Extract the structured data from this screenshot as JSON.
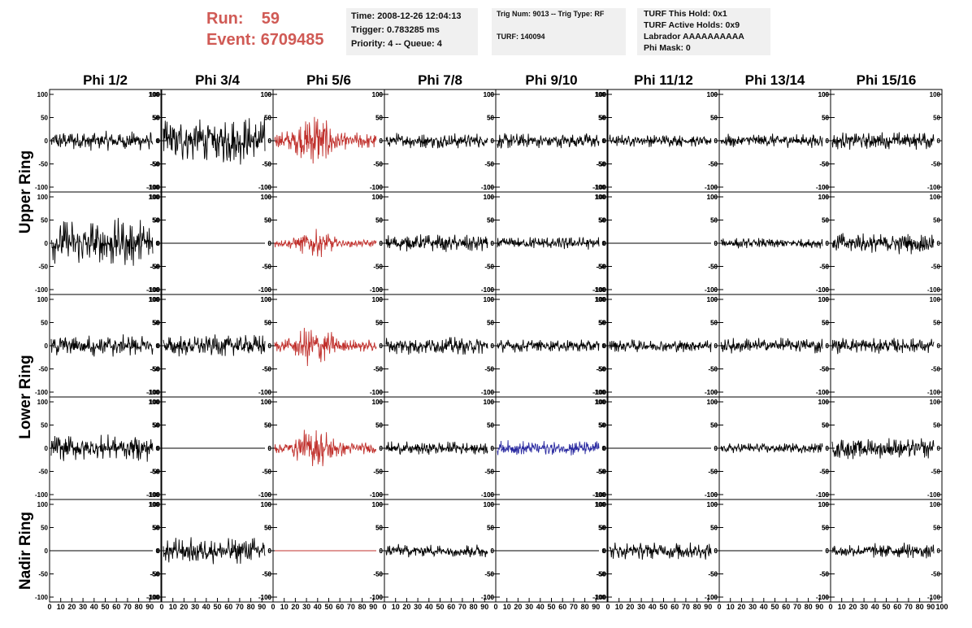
{
  "header": {
    "run_label": "Run:",
    "run_value": "59",
    "event_label": "Event:",
    "event_value": "6709485",
    "time": "Time: 2008-12-26 12:04:13",
    "trigger": "Trigger: 0.783285 ms",
    "priority": "Priority: 4 -- Queue: 4",
    "trig_num": "Trig Num: 9013 -- Trig Type: RF",
    "turf": "TURF: 140094",
    "turf_this_hold": "TURF This Hold: 0x1",
    "turf_active_holds": "TURF Active Holds: 0x9",
    "labrador": "Labrador AAAAAAAAAA",
    "phi_mask": "Phi Mask: 0"
  },
  "colors": {
    "header_text": "#d05a55",
    "info_bg": "#f0f0f0",
    "trace_default": "#000000",
    "trace_triggered": "#c0302c",
    "trace_blue": "#2a2aa0"
  },
  "chart_data": {
    "type": "line",
    "column_labels": [
      "Phi 1/2",
      "Phi 3/4",
      "Phi 5/6",
      "Phi 7/8",
      "Phi 9/10",
      "Phi 11/12",
      "Phi 13/14",
      "Phi 15/16"
    ],
    "ring_labels": [
      "Upper Ring",
      "Lower Ring",
      "Nadir Ring"
    ],
    "ylim": [
      -100,
      100
    ],
    "y_ticks": [
      "100",
      "50",
      "0",
      "-50",
      "-100"
    ],
    "xlim": [
      0,
      100
    ],
    "x_ticks": [
      "0",
      "10",
      "20",
      "30",
      "40",
      "50",
      "60",
      "70",
      "80",
      "90",
      "100"
    ],
    "panels": [
      [
        {
          "amp": 22,
          "color": "black"
        },
        {
          "amp": 55,
          "color": "black"
        },
        {
          "amp": 55,
          "color": "red",
          "burst": true
        },
        {
          "amp": 18,
          "color": "black"
        },
        {
          "amp": 18,
          "color": "black"
        },
        {
          "amp": 14,
          "color": "black"
        },
        {
          "amp": 16,
          "color": "black"
        },
        {
          "amp": 20,
          "color": "black"
        }
      ],
      [
        {
          "amp": 55,
          "color": "black"
        },
        {
          "amp": 0,
          "color": "black"
        },
        {
          "amp": 25,
          "color": "red",
          "burst": true
        },
        {
          "amp": 20,
          "color": "black"
        },
        {
          "amp": 15,
          "color": "black"
        },
        {
          "amp": 0,
          "color": "black"
        },
        {
          "amp": 12,
          "color": "black"
        },
        {
          "amp": 25,
          "color": "black"
        }
      ],
      [
        {
          "amp": 25,
          "color": "black"
        },
        {
          "amp": 25,
          "color": "black"
        },
        {
          "amp": 40,
          "color": "red",
          "burst": true
        },
        {
          "amp": 20,
          "color": "black"
        },
        {
          "amp": 15,
          "color": "black"
        },
        {
          "amp": 15,
          "color": "black"
        },
        {
          "amp": 18,
          "color": "black"
        },
        {
          "amp": 18,
          "color": "black"
        }
      ],
      [
        {
          "amp": 30,
          "color": "black"
        },
        {
          "amp": 0,
          "color": "black"
        },
        {
          "amp": 40,
          "color": "red",
          "burst": true
        },
        {
          "amp": 15,
          "color": "black"
        },
        {
          "amp": 18,
          "color": "blue"
        },
        {
          "amp": 0,
          "color": "black"
        },
        {
          "amp": 12,
          "color": "black"
        },
        {
          "amp": 25,
          "color": "black"
        }
      ],
      [
        {
          "amp": 0,
          "color": "black"
        },
        {
          "amp": 30,
          "color": "black"
        },
        {
          "amp": 0,
          "color": "red"
        },
        {
          "amp": 15,
          "color": "black"
        },
        {
          "amp": 0,
          "color": "black"
        },
        {
          "amp": 20,
          "color": "black"
        },
        {
          "amp": 0,
          "color": "black"
        },
        {
          "amp": 18,
          "color": "black"
        }
      ]
    ]
  }
}
